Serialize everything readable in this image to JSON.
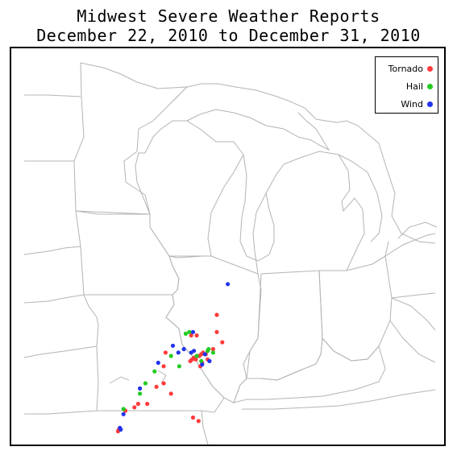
{
  "title": {
    "line1": "Midwest Severe Weather Reports",
    "line2": "December 22, 2010 to December 31, 2010"
  },
  "legend": {
    "items": [
      {
        "label": "Tornado",
        "color": "#ff3b3b"
      },
      {
        "label": "Hail",
        "color": "#22cc22"
      },
      {
        "label": "Wind",
        "color": "#2233ee"
      }
    ]
  },
  "colors": {
    "boundary": "#b4b4b4",
    "frame": "#000000"
  },
  "reports": {
    "tornado": [
      [
        -91.9,
        38.8
      ],
      [
        -92.0,
        38.4
      ],
      [
        -92.4,
        37.8
      ],
      [
        -92.0,
        37.9
      ],
      [
        -91.6,
        37.6
      ],
      [
        -92.9,
        37.3
      ],
      [
        -93.4,
        37.3
      ],
      [
        -93.6,
        37.2
      ],
      [
        -94.1,
        37.1
      ],
      [
        -90.55,
        38.55
      ],
      [
        -90.45,
        38.6
      ],
      [
        -90.35,
        38.65
      ],
      [
        -90.25,
        38.6
      ],
      [
        -90.15,
        38.7
      ],
      [
        -90.05,
        38.7
      ],
      [
        -89.95,
        38.75
      ],
      [
        -89.85,
        38.8
      ],
      [
        -89.7,
        38.75
      ],
      [
        -89.6,
        38.6
      ],
      [
        -89.9,
        38.5
      ],
      [
        -90.0,
        38.4
      ],
      [
        -89.1,
        39.4
      ],
      [
        -89.1,
        39.9
      ],
      [
        -90.2,
        39.3
      ],
      [
        -90.5,
        39.3
      ],
      [
        -89.3,
        38.9
      ],
      [
        -88.8,
        39.1
      ],
      [
        -90.4,
        36.9
      ],
      [
        -90.1,
        36.8
      ],
      [
        -94.45,
        36.55
      ],
      [
        -94.5,
        36.5
      ]
    ],
    "hail": [
      [
        -90.8,
        39.35
      ],
      [
        -91.6,
        38.7
      ],
      [
        -91.15,
        38.4
      ],
      [
        -92.5,
        38.25
      ],
      [
        -93.0,
        37.9
      ],
      [
        -93.3,
        37.6
      ],
      [
        -94.2,
        37.15
      ],
      [
        -90.2,
        38.7
      ],
      [
        -89.95,
        38.55
      ],
      [
        -89.6,
        38.85
      ],
      [
        -89.3,
        38.8
      ],
      [
        -90.6,
        39.4
      ],
      [
        -89.55,
        38.9
      ]
    ],
    "wind": [
      [
        -88.5,
        40.8
      ],
      [
        -90.4,
        39.4
      ],
      [
        -92.3,
        38.5
      ],
      [
        -91.5,
        39.0
      ],
      [
        -91.2,
        38.8
      ],
      [
        -90.9,
        38.9
      ],
      [
        -90.5,
        38.8
      ],
      [
        -90.35,
        38.85
      ],
      [
        -89.9,
        38.45
      ],
      [
        -89.75,
        38.75
      ],
      [
        -89.5,
        38.55
      ],
      [
        -93.3,
        37.75
      ],
      [
        -94.2,
        37.0
      ],
      [
        -94.4,
        36.6
      ],
      [
        -94.35,
        36.55
      ]
    ]
  }
}
